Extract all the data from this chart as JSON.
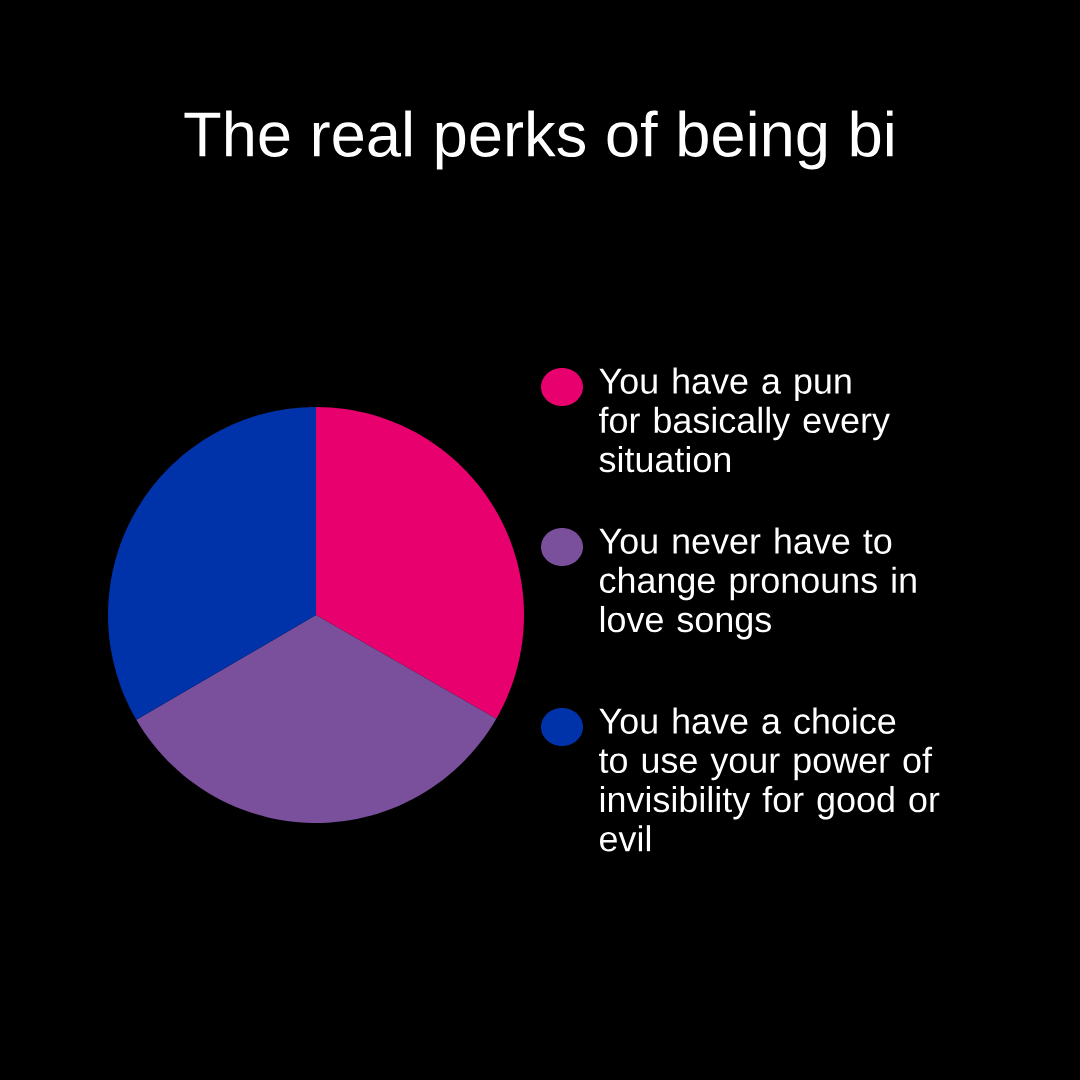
{
  "chart_data": {
    "type": "pie",
    "title": "The real perks of being bi",
    "categories": [
      "You have a pun for basically every situation",
      "You never have to change pronouns in love songs",
      "You have a choice to use your power of invisibility for good or evil"
    ],
    "values": [
      33.3,
      33.3,
      33.4
    ],
    "colors": [
      "#e8006f",
      "#7a4f9b",
      "#0033aa"
    ],
    "legend": "right"
  }
}
